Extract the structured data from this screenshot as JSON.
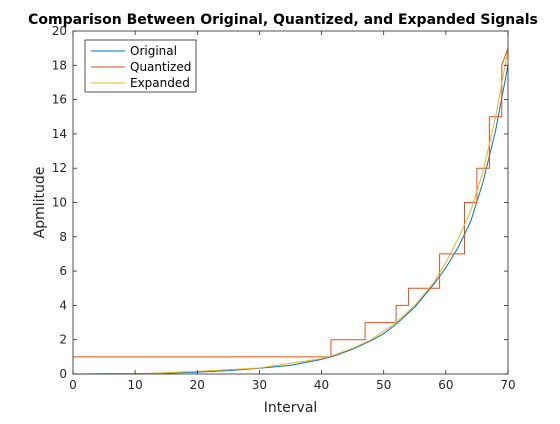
{
  "chart_data": {
    "type": "line",
    "title": "Comparison Between Original, Quantized, and Expanded Signals",
    "xlabel": "Interval",
    "ylabel": "Apmlitude",
    "xlim": [
      0,
      70
    ],
    "ylim": [
      0,
      20
    ],
    "x_ticks": [
      0,
      10,
      20,
      30,
      40,
      50,
      60,
      70
    ],
    "y_ticks": [
      0,
      2,
      4,
      6,
      8,
      10,
      12,
      14,
      16,
      18,
      20
    ],
    "grid": false,
    "legend_position": "top-left",
    "series": [
      {
        "name": "Original",
        "color": "#0072BD",
        "style": "line",
        "x": [
          1,
          5,
          10,
          15,
          20,
          25,
          30,
          35,
          40,
          42,
          45,
          48,
          50,
          52,
          55,
          58,
          60,
          62,
          64,
          66,
          68,
          70
        ],
        "y": [
          0.0,
          0.01,
          0.02,
          0.05,
          0.11,
          0.2,
          0.33,
          0.5,
          0.85,
          1.05,
          1.45,
          1.95,
          2.35,
          2.9,
          3.9,
          5.2,
          6.2,
          7.4,
          8.9,
          11.2,
          14.2,
          18.0
        ]
      },
      {
        "name": "Quantized",
        "color": "#D95319",
        "style": "step",
        "x": [
          0,
          41.5,
          41.5,
          47,
          47,
          50,
          50,
          52,
          52,
          54,
          54,
          57,
          57,
          59,
          59,
          61,
          61,
          63,
          63,
          65,
          65,
          67,
          67,
          69,
          69,
          70
        ],
        "y": [
          1,
          1,
          2,
          2,
          3,
          3,
          3,
          3,
          4,
          4,
          5,
          5,
          5,
          5,
          7,
          7,
          7,
          7,
          10,
          10,
          12,
          12,
          15,
          15,
          18,
          19
        ]
      },
      {
        "name": "Expanded",
        "color": "#EDB120",
        "style": "line",
        "x": [
          0,
          10,
          20,
          30,
          40,
          42,
          45,
          48,
          50,
          52,
          55,
          58,
          60,
          62,
          64,
          66,
          68,
          70
        ],
        "y": [
          0.0,
          0.0,
          0.15,
          0.35,
          0.9,
          1.1,
          1.5,
          2.0,
          2.5,
          3.0,
          4.0,
          5.3,
          6.5,
          7.9,
          9.5,
          11.8,
          15.0,
          18.9
        ]
      }
    ]
  }
}
